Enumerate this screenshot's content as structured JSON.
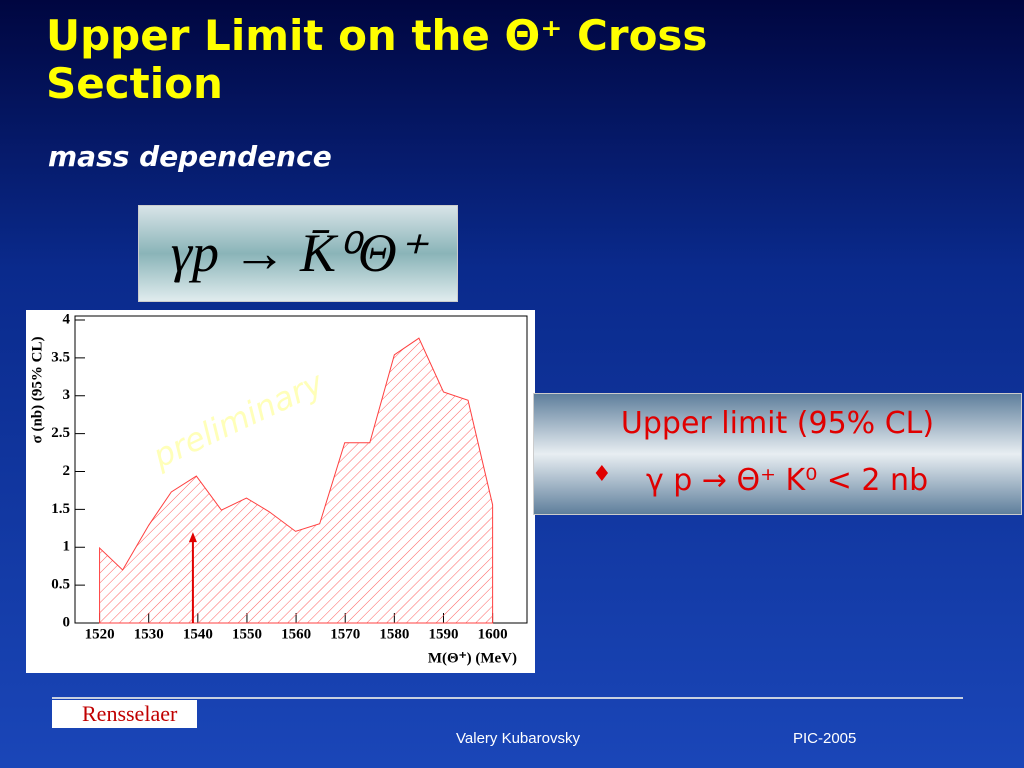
{
  "title": "Upper Limit on the Θ⁺ Cross Section",
  "subtitle": "mass dependence",
  "formula": "γp → K̄⁰Θ⁺",
  "result_box": {
    "heading": "Upper limit (95% CL)",
    "bullet": "♦",
    "line": "γ p → Θ⁺ K⁰ < 2 nb"
  },
  "footer": {
    "logo": "Rensselaer",
    "author": "Valery Kubarovsky",
    "event": "PIC-2005"
  },
  "chart_data": {
    "type": "area",
    "x_label": "M(Θ⁺) (MeV)",
    "y_label": "σ (nb) (95% CL)",
    "watermark": "preliminary",
    "x": [
      1520,
      1524.7,
      1530,
      1534.6,
      1539.7,
      1544.8,
      1549.9,
      1554.5,
      1559.9,
      1564.8,
      1569.9,
      1575,
      1580,
      1585,
      1590,
      1595,
      1600
    ],
    "series": [
      {
        "name": "upper limit",
        "color": "#ff4040",
        "values": [
          0.99,
          0.7,
          1.29,
          1.73,
          1.94,
          1.49,
          1.65,
          1.47,
          1.21,
          1.31,
          2.38,
          2.38,
          3.54,
          3.76,
          3.05,
          2.94,
          1.56
        ]
      }
    ],
    "arrow": {
      "x": 1539,
      "y": 1.2,
      "color": "#e00000"
    },
    "xlim": [
      1515,
      1607
    ],
    "ylim": [
      0,
      4
    ],
    "xticks": [
      1520,
      1530,
      1540,
      1550,
      1560,
      1570,
      1580,
      1590,
      1600
    ],
    "yticks": [
      0,
      0.5,
      1,
      1.5,
      2,
      2.5,
      3,
      3.5,
      4
    ]
  }
}
